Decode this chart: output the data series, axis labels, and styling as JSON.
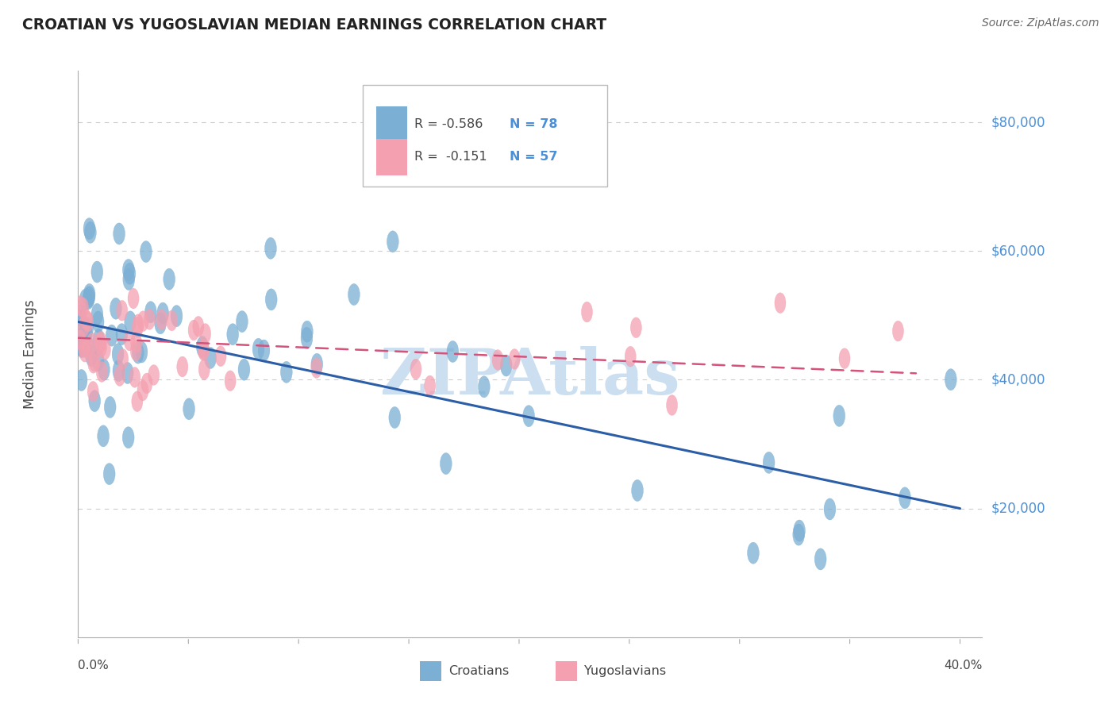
{
  "title": "CROATIAN VS YUGOSLAVIAN MEDIAN EARNINGS CORRELATION CHART",
  "source": "Source: ZipAtlas.com",
  "ylabel": "Median Earnings",
  "watermark": "ZIPAtlas",
  "croatian_R": -0.586,
  "croatian_N": 78,
  "yugoslavian_R": -0.151,
  "yugoslavian_N": 57,
  "y_ticks": [
    20000,
    40000,
    60000,
    80000
  ],
  "y_tick_labels": [
    "$20,000",
    "$40,000",
    "$60,000",
    "$80,000"
  ],
  "ylim": [
    0,
    88000
  ],
  "xlim": [
    0.0,
    0.41
  ],
  "blue_color": "#7BAFD4",
  "blue_line": "#2B5EA7",
  "pink_color": "#F4A0B0",
  "pink_line": "#D4537A",
  "label_color": "#4A90D9",
  "grid_color": "#CCCCCC",
  "title_color": "#222222",
  "source_color": "#666666",
  "text_color": "#444444",
  "watermark_color": "#CCDFF0"
}
